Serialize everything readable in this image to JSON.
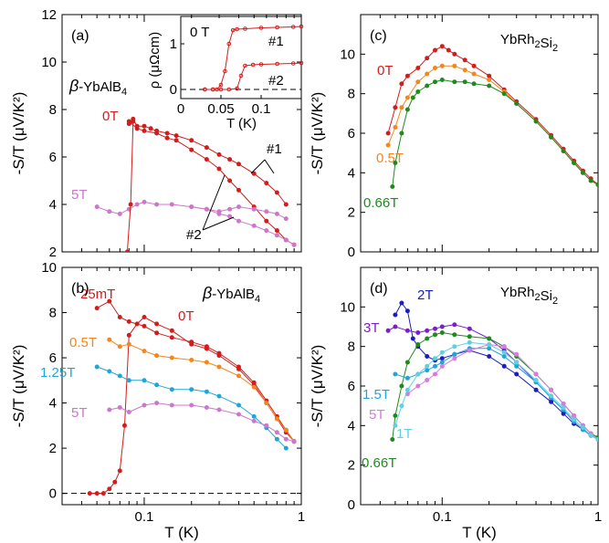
{
  "colors": {
    "red": "#d41c1c",
    "violet": "#cc77cc",
    "orange": "#f3861c",
    "cyan": "#1fa6d9",
    "green": "#1f8a1f",
    "blue": "#1c1cc4",
    "purple": "#7a1fcc",
    "pink": "#d97ae0",
    "lightcyan": "#5fd0e0"
  },
  "chart_data": [
    {
      "panel_label": "(a)",
      "type": "line",
      "material_prefix": "β",
      "material_main": "-YbAlB",
      "material_sub": "4",
      "xscale": "log",
      "xlim": [
        0.03,
        1.0
      ],
      "ylim": [
        2,
        12
      ],
      "yticks": [
        "2",
        "4",
        "6",
        "8",
        "10",
        "12"
      ],
      "ylabel": "-S/T (μV/K²)",
      "annotations": [
        "#1",
        "#2"
      ],
      "series": [
        {
          "name": "0T",
          "color": "#d41c1c",
          "x": [
            0.08,
            0.085,
            0.09,
            0.1,
            0.11,
            0.12,
            0.14,
            0.16,
            0.2,
            0.25,
            0.3,
            0.35,
            0.4,
            0.5,
            0.6,
            0.7,
            0.8
          ],
          "y": [
            7.4,
            7.6,
            7.3,
            7.3,
            7.2,
            7.1,
            7.0,
            6.9,
            6.7,
            6.4,
            6.1,
            5.9,
            5.7,
            5.3,
            4.9,
            4.5,
            4.0
          ]
        },
        {
          "name": "",
          "color": "#d41c1c",
          "x": [
            0.08,
            0.09,
            0.1,
            0.12,
            0.14,
            0.16,
            0.2,
            0.25,
            0.3,
            0.35,
            0.4,
            0.5,
            0.6,
            0.7,
            0.8,
            0.9
          ],
          "y": [
            7.5,
            7.2,
            7.1,
            7.0,
            6.8,
            6.7,
            6.3,
            5.9,
            5.5,
            5.0,
            4.6,
            3.9,
            3.3,
            2.9,
            2.5,
            2.3
          ]
        },
        {
          "name": "5T",
          "color": "#cc77cc",
          "x": [
            0.05,
            0.06,
            0.07,
            0.08,
            0.09,
            0.1,
            0.12,
            0.15,
            0.2,
            0.25,
            0.3,
            0.35,
            0.4,
            0.5,
            0.6,
            0.7,
            0.8
          ],
          "y": [
            3.9,
            3.7,
            3.6,
            3.8,
            4.0,
            4.1,
            4.0,
            4.0,
            3.9,
            3.8,
            3.7,
            3.8,
            3.9,
            3.8,
            3.7,
            3.6,
            3.4
          ]
        },
        {
          "name": "",
          "color": "#cc77cc",
          "x": [
            0.2,
            0.25,
            0.3,
            0.35,
            0.4,
            0.5,
            0.6,
            0.7,
            0.8,
            0.9
          ],
          "y": [
            3.9,
            3.8,
            3.6,
            3.5,
            3.3,
            3.1,
            2.9,
            2.7,
            2.5,
            2.3
          ]
        },
        {
          "name": "",
          "color": "#d41c1c",
          "x": [
            0.078,
            0.082,
            0.085
          ],
          "y": [
            2.0,
            4.0,
            7.5
          ]
        }
      ],
      "inset": {
        "label": "0 T",
        "ylabel": "ρ (μΩcm)",
        "xlabel": "T (K)",
        "xlim": [
          0,
          0.15
        ],
        "ylim": [
          -0.2,
          1.6
        ],
        "xticks": [
          "0",
          "0.05",
          "0.1"
        ],
        "yticks": [
          "0",
          "1"
        ],
        "series": [
          {
            "name": "#1",
            "color": "#d41c1c",
            "x": [
              0.03,
              0.04,
              0.045,
              0.05,
              0.055,
              0.06,
              0.065,
              0.07,
              0.08,
              0.1,
              0.12,
              0.14,
              0.15
            ],
            "y": [
              0.0,
              0.0,
              0.0,
              0.1,
              0.4,
              1.0,
              1.3,
              1.32,
              1.33,
              1.35,
              1.36,
              1.37,
              1.38
            ]
          },
          {
            "name": "#2",
            "color": "#d41c1c",
            "x": [
              0.03,
              0.04,
              0.05,
              0.06,
              0.07,
              0.075,
              0.08,
              0.09,
              0.1,
              0.12,
              0.14,
              0.15
            ],
            "y": [
              0.0,
              0.0,
              0.0,
              0.0,
              0.02,
              0.3,
              0.52,
              0.54,
              0.55,
              0.56,
              0.57,
              0.58
            ]
          }
        ]
      }
    },
    {
      "panel_label": "(b)",
      "type": "line",
      "material_prefix": "β",
      "material_main": "-YbAlB",
      "material_sub": "4",
      "xscale": "log",
      "xlim": [
        0.03,
        1.0
      ],
      "xticks": [
        "0.1",
        "1"
      ],
      "ylim": [
        -0.5,
        10
      ],
      "yticks": [
        "0",
        "2",
        "4",
        "6",
        "8",
        "10"
      ],
      "ylabel": "-S/T (μV/K²)",
      "xlabel": "T (K)",
      "series": [
        {
          "name": "25mT",
          "color": "#d41c1c",
          "x": [
            0.045,
            0.05,
            0.055,
            0.06,
            0.065,
            0.07,
            0.075,
            0.08,
            0.09,
            0.1,
            0.12,
            0.15,
            0.2,
            0.25,
            0.3,
            0.4,
            0.5,
            0.6,
            0.7,
            0.8,
            0.9
          ],
          "y": [
            0.0,
            0.0,
            0.0,
            0.2,
            0.5,
            1.0,
            3.0,
            7.0,
            7.5,
            7.8,
            7.5,
            7.2,
            6.6,
            6.4,
            6.1,
            5.5,
            4.8,
            4.0,
            3.3,
            2.7,
            2.3
          ]
        },
        {
          "name": "0T",
          "color": "#d41c1c",
          "x": [
            0.05,
            0.06,
            0.07,
            0.08,
            0.1,
            0.12,
            0.15,
            0.2,
            0.25,
            0.3,
            0.4,
            0.5,
            0.6,
            0.7,
            0.8,
            0.9
          ],
          "y": [
            8.2,
            8.5,
            7.8,
            7.6,
            7.4,
            7.1,
            6.9,
            6.7,
            6.5,
            6.2,
            5.6,
            4.9,
            4.1,
            3.4,
            2.8,
            2.3
          ]
        },
        {
          "name": "0.5T",
          "color": "#f3861c",
          "x": [
            0.06,
            0.07,
            0.08,
            0.1,
            0.12,
            0.15,
            0.2,
            0.25,
            0.3,
            0.4,
            0.5,
            0.6,
            0.7,
            0.8,
            0.9
          ],
          "y": [
            6.8,
            6.5,
            6.6,
            6.3,
            6.1,
            6.0,
            5.9,
            5.8,
            5.6,
            5.2,
            4.7,
            4.0,
            3.3,
            2.8,
            2.3
          ]
        },
        {
          "name": "1.25T",
          "color": "#1fa6d9",
          "x": [
            0.05,
            0.06,
            0.07,
            0.08,
            0.1,
            0.12,
            0.15,
            0.2,
            0.25,
            0.3,
            0.4,
            0.5,
            0.6,
            0.7,
            0.8
          ],
          "y": [
            5.6,
            5.4,
            5.2,
            5.0,
            5.0,
            4.8,
            4.6,
            4.6,
            4.5,
            4.3,
            3.9,
            3.4,
            2.9,
            2.4,
            2.0
          ]
        },
        {
          "name": "5T",
          "color": "#cc77cc",
          "x": [
            0.06,
            0.07,
            0.08,
            0.1,
            0.12,
            0.15,
            0.2,
            0.25,
            0.3,
            0.4,
            0.5,
            0.6,
            0.7,
            0.8,
            0.9
          ],
          "y": [
            3.7,
            3.8,
            3.6,
            3.9,
            4.0,
            3.9,
            3.9,
            3.8,
            3.7,
            3.5,
            3.2,
            3.0,
            2.7,
            2.4,
            2.3
          ]
        }
      ]
    },
    {
      "panel_label": "(c)",
      "type": "line",
      "material_main": "YbRh",
      "material_sub1": "2",
      "material_mid": "Si",
      "material_sub2": "2",
      "xscale": "log",
      "xlim": [
        0.03,
        1.0
      ],
      "ylim": [
        0,
        12
      ],
      "yticks": [
        "0",
        "2",
        "4",
        "6",
        "8",
        "10"
      ],
      "ylabel": "-S/T (μV/K²)",
      "series": [
        {
          "name": "0T",
          "color": "#d41c1c",
          "x": [
            0.045,
            0.05,
            0.055,
            0.06,
            0.07,
            0.08,
            0.09,
            0.1,
            0.11,
            0.12,
            0.14,
            0.16,
            0.2,
            0.25,
            0.3,
            0.4,
            0.5,
            0.6,
            0.7,
            0.8,
            0.9,
            1.0
          ],
          "y": [
            6.0,
            7.3,
            8.5,
            8.9,
            9.3,
            9.8,
            10.2,
            10.4,
            10.2,
            10.0,
            9.7,
            9.4,
            8.9,
            8.2,
            7.6,
            6.7,
            5.9,
            5.2,
            4.6,
            4.1,
            3.7,
            3.4
          ]
        },
        {
          "name": "0.5T",
          "color": "#f3861c",
          "x": [
            0.045,
            0.05,
            0.055,
            0.06,
            0.07,
            0.08,
            0.09,
            0.1,
            0.12,
            0.14,
            0.16,
            0.2,
            0.25,
            0.3,
            0.4,
            0.5,
            0.6,
            0.7,
            0.8,
            0.9,
            1.0
          ],
          "y": [
            5.4,
            6.3,
            7.3,
            7.8,
            8.6,
            9.0,
            9.3,
            9.4,
            9.4,
            9.2,
            9.0,
            8.7,
            8.1,
            7.5,
            6.6,
            5.8,
            5.1,
            4.5,
            4.0,
            3.6,
            3.4
          ]
        },
        {
          "name": "0.66T",
          "color": "#1f8a1f",
          "x": [
            0.048,
            0.05,
            0.055,
            0.06,
            0.065,
            0.07,
            0.08,
            0.09,
            0.1,
            0.12,
            0.14,
            0.16,
            0.2,
            0.25,
            0.3,
            0.4,
            0.5,
            0.6,
            0.7,
            0.8,
            0.9,
            1.0
          ],
          "y": [
            3.3,
            4.5,
            6.0,
            7.2,
            7.8,
            8.1,
            8.4,
            8.6,
            8.7,
            8.6,
            8.6,
            8.5,
            8.4,
            8.0,
            7.5,
            6.6,
            5.8,
            5.1,
            4.5,
            4.0,
            3.6,
            3.4
          ]
        }
      ]
    },
    {
      "panel_label": "(d)",
      "type": "line",
      "material_main": "YbRh",
      "material_sub1": "2",
      "material_mid": "Si",
      "material_sub2": "2",
      "xscale": "log",
      "xlim": [
        0.03,
        1.0
      ],
      "xticks": [
        "0.1",
        "1"
      ],
      "ylim": [
        0,
        12
      ],
      "yticks": [
        "0",
        "2",
        "4",
        "6",
        "8",
        "10"
      ],
      "ylabel": "-S/T (μV/K²)",
      "xlabel": "T (K)",
      "series": [
        {
          "name": "2T",
          "color": "#1c1cc4",
          "x": [
            0.05,
            0.055,
            0.06,
            0.065,
            0.07,
            0.08,
            0.09,
            0.1,
            0.12,
            0.15,
            0.2,
            0.25,
            0.3,
            0.4,
            0.5,
            0.6,
            0.7,
            0.8,
            0.9,
            1.0
          ],
          "y": [
            9.6,
            10.2,
            9.8,
            8.4,
            8.0,
            7.5,
            7.3,
            7.4,
            7.6,
            7.8,
            7.5,
            7.0,
            6.6,
            5.8,
            5.2,
            4.6,
            4.1,
            3.8,
            3.5,
            3.3
          ]
        },
        {
          "name": "3T",
          "color": "#7a1fcc",
          "x": [
            0.045,
            0.05,
            0.06,
            0.07,
            0.08,
            0.09,
            0.1,
            0.12,
            0.15,
            0.2,
            0.25,
            0.3,
            0.4,
            0.5,
            0.6,
            0.7,
            0.8,
            0.9,
            1.0
          ],
          "y": [
            8.8,
            9.0,
            8.8,
            8.7,
            8.8,
            8.9,
            9.0,
            9.1,
            8.9,
            8.4,
            7.8,
            7.2,
            6.2,
            5.4,
            4.8,
            4.2,
            3.8,
            3.5,
            3.3
          ]
        },
        {
          "name": "0.66T",
          "color": "#1f8a1f",
          "x": [
            0.048,
            0.05,
            0.055,
            0.06,
            0.07,
            0.08,
            0.09,
            0.1,
            0.12,
            0.15,
            0.2,
            0.25,
            0.3,
            0.4,
            0.5,
            0.6,
            0.7,
            0.8,
            0.9,
            1.0
          ],
          "y": [
            3.3,
            4.5,
            6.0,
            7.2,
            8.1,
            8.4,
            8.6,
            8.7,
            8.6,
            8.5,
            8.4,
            8.0,
            7.5,
            6.6,
            5.8,
            5.1,
            4.5,
            4.0,
            3.6,
            3.4
          ]
        },
        {
          "name": "1.5T",
          "color": "#1fa6d9",
          "x": [
            0.05,
            0.06,
            0.07,
            0.08,
            0.09,
            0.1,
            0.12,
            0.15,
            0.2,
            0.25,
            0.3,
            0.4,
            0.5,
            0.6,
            0.7,
            0.8,
            0.9,
            1.0
          ],
          "y": [
            6.6,
            6.4,
            6.6,
            6.8,
            7.0,
            7.2,
            7.6,
            7.9,
            7.9,
            7.5,
            7.0,
            6.2,
            5.4,
            4.8,
            4.2,
            3.8,
            3.5,
            3.3
          ]
        },
        {
          "name": "5T",
          "color": "#d97ae0",
          "x": [
            0.06,
            0.07,
            0.08,
            0.09,
            0.1,
            0.12,
            0.15,
            0.2,
            0.25,
            0.3,
            0.4,
            0.5,
            0.6,
            0.7,
            0.8,
            0.9,
            1.0
          ],
          "y": [
            5.6,
            6.0,
            6.3,
            6.6,
            7.0,
            7.4,
            7.8,
            8.1,
            8.0,
            7.6,
            6.6,
            5.8,
            5.1,
            4.5,
            4.0,
            3.6,
            3.3
          ]
        },
        {
          "name": "1T",
          "color": "#5fd0e0",
          "x": [
            0.05,
            0.055,
            0.06,
            0.07,
            0.08,
            0.09,
            0.1,
            0.12,
            0.15,
            0.2,
            0.25,
            0.3,
            0.4,
            0.5,
            0.6,
            0.7,
            0.8,
            0.9,
            1.0
          ],
          "y": [
            4.0,
            5.0,
            5.8,
            6.6,
            7.0,
            7.4,
            7.7,
            8.0,
            8.2,
            8.1,
            7.7,
            7.2,
            6.3,
            5.5,
            4.9,
            4.3,
            3.9,
            3.5,
            3.3
          ]
        }
      ]
    }
  ]
}
